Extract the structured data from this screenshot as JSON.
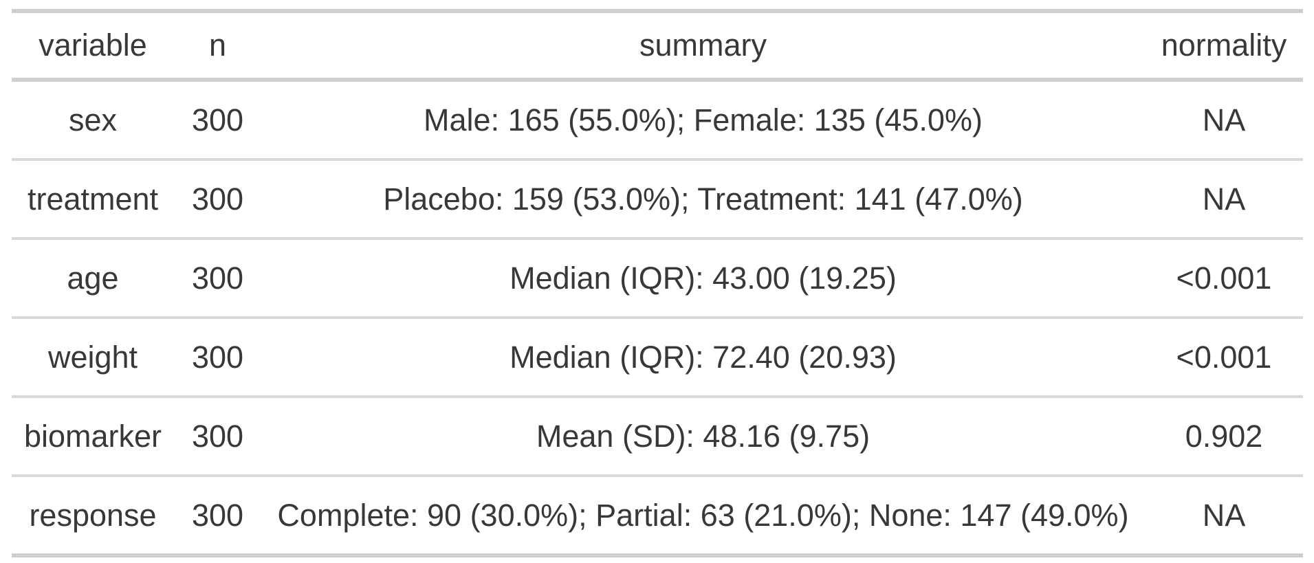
{
  "table": {
    "columns": {
      "variable": "variable",
      "n": "n",
      "summary": "summary",
      "normality": "normality"
    },
    "rows": [
      {
        "variable": "sex",
        "n": "300",
        "summary": "Male: 165 (55.0%); Female: 135 (45.0%)",
        "normality": "NA"
      },
      {
        "variable": "treatment",
        "n": "300",
        "summary": "Placebo: 159 (53.0%); Treatment: 141 (47.0%)",
        "normality": "NA"
      },
      {
        "variable": "age",
        "n": "300",
        "summary": "Median (IQR): 43.00 (19.25)",
        "normality": "<0.001"
      },
      {
        "variable": "weight",
        "n": "300",
        "summary": "Median (IQR): 72.40 (20.93)",
        "normality": "<0.001"
      },
      {
        "variable": "biomarker",
        "n": "300",
        "summary": "Mean (SD): 48.16 (9.75)",
        "normality": "0.902"
      },
      {
        "variable": "response",
        "n": "300",
        "summary": "Complete: 90 (30.0%); Partial: 63 (21.0%); None: 147 (49.0%)",
        "normality": "NA"
      }
    ]
  },
  "colors": {
    "text": "#383838",
    "border_heavy": "#cfcfcf",
    "border_light": "#d9d9d9",
    "background": "#ffffff"
  }
}
